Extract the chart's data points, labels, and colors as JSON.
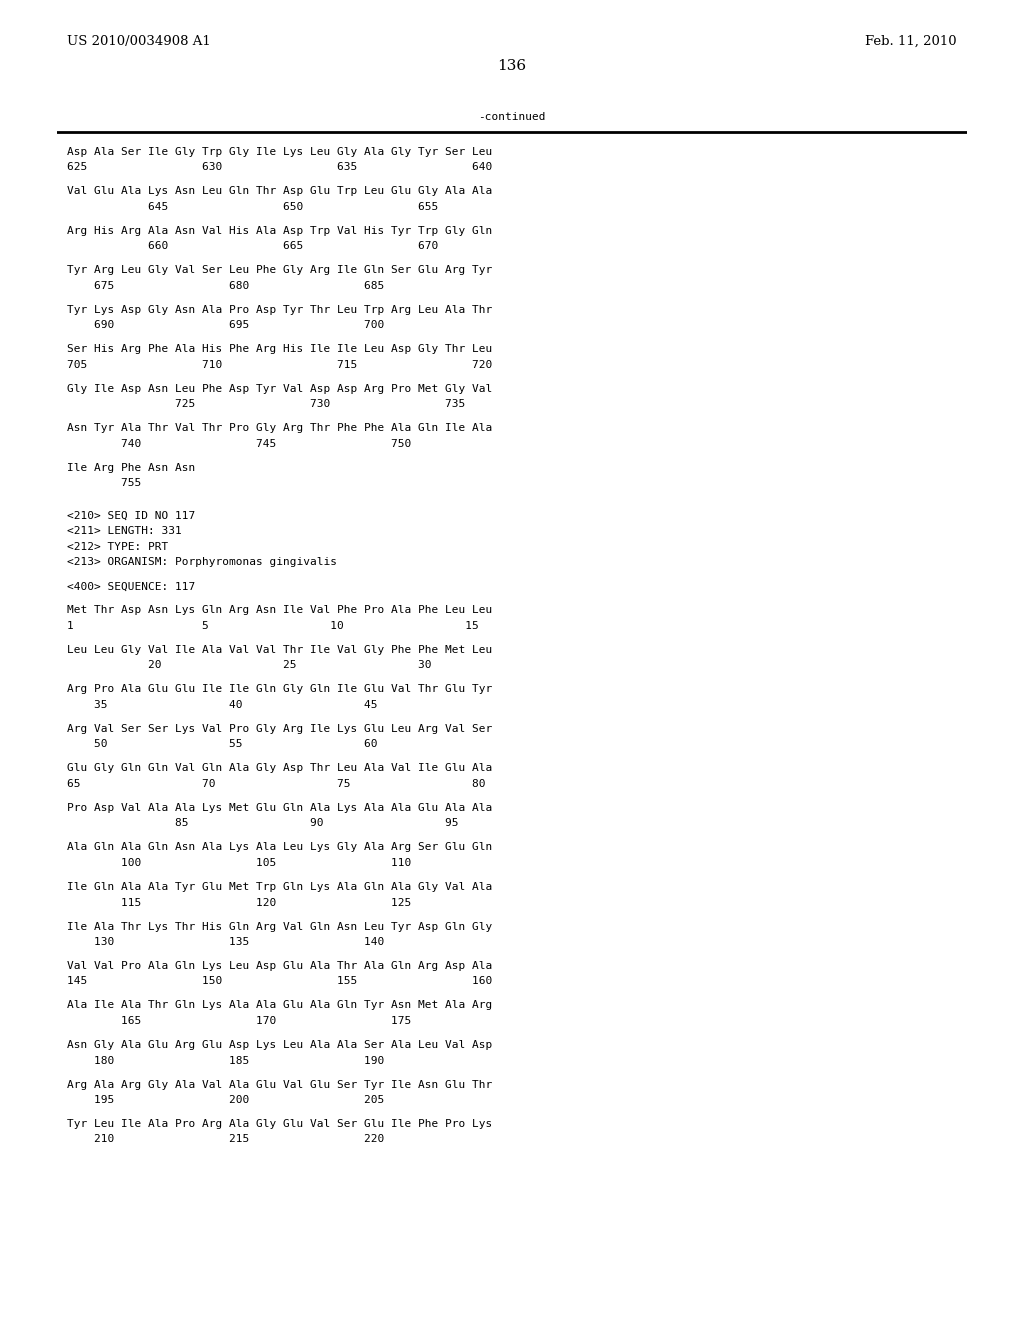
{
  "header_left": "US 2010/0034908 A1",
  "header_right": "Feb. 11, 2010",
  "page_number": "136",
  "continued_label": "-continued",
  "background_color": "#ffffff",
  "text_color": "#000000",
  "font_size": 8.0,
  "mono_font": "DejaVu Sans Mono",
  "header_font_size": 9.5,
  "page_num_font_size": 11,
  "lines": [
    "Asp Ala Ser Ile Gly Trp Gly Ile Lys Leu Gly Ala Gly Tyr Ser Leu",
    "625                 630                 635                 640",
    "",
    "Val Glu Ala Lys Asn Leu Gln Thr Asp Glu Trp Leu Glu Gly Ala Ala",
    "            645                 650                 655",
    "",
    "Arg His Arg Ala Asn Val His Ala Asp Trp Val His Tyr Trp Gly Gln",
    "            660                 665                 670",
    "",
    "Tyr Arg Leu Gly Val Ser Leu Phe Gly Arg Ile Gln Ser Glu Arg Tyr",
    "    675                 680                 685",
    "",
    "Tyr Lys Asp Gly Asn Ala Pro Asp Tyr Thr Leu Trp Arg Leu Ala Thr",
    "    690                 695                 700",
    "",
    "Ser His Arg Phe Ala His Phe Arg His Ile Ile Leu Asp Gly Thr Leu",
    "705                 710                 715                 720",
    "",
    "Gly Ile Asp Asn Leu Phe Asp Tyr Val Asp Asp Arg Pro Met Gly Val",
    "                725                 730                 735",
    "",
    "Asn Tyr Ala Thr Val Thr Pro Gly Arg Thr Phe Phe Ala Gln Ile Ala",
    "        740                 745                 750",
    "",
    "Ile Arg Phe Asn Asn",
    "        755",
    "",
    "",
    "<210> SEQ ID NO 117",
    "<211> LENGTH: 331",
    "<212> TYPE: PRT",
    "<213> ORGANISM: Porphyromonas gingivalis",
    "",
    "<400> SEQUENCE: 117",
    "",
    "Met Thr Asp Asn Lys Gln Arg Asn Ile Val Phe Pro Ala Phe Leu Leu",
    "1                   5                  10                  15",
    "",
    "Leu Leu Gly Val Ile Ala Val Val Thr Ile Val Gly Phe Phe Met Leu",
    "            20                  25                  30",
    "",
    "Arg Pro Ala Glu Glu Ile Ile Gln Gly Gln Ile Glu Val Thr Glu Tyr",
    "    35                  40                  45",
    "",
    "Arg Val Ser Ser Lys Val Pro Gly Arg Ile Lys Glu Leu Arg Val Ser",
    "    50                  55                  60",
    "",
    "Glu Gly Gln Gln Val Gln Ala Gly Asp Thr Leu Ala Val Ile Glu Ala",
    "65                  70                  75                  80",
    "",
    "Pro Asp Val Ala Ala Lys Met Glu Gln Ala Lys Ala Ala Glu Ala Ala",
    "                85                  90                  95",
    "",
    "Ala Gln Ala Gln Asn Ala Lys Ala Leu Lys Gly Ala Arg Ser Glu Gln",
    "        100                 105                 110",
    "",
    "Ile Gln Ala Ala Tyr Glu Met Trp Gln Lys Ala Gln Ala Gly Val Ala",
    "        115                 120                 125",
    "",
    "Ile Ala Thr Lys Thr His Gln Arg Val Gln Asn Leu Tyr Asp Gln Gly",
    "    130                 135                 140",
    "",
    "Val Val Pro Ala Gln Lys Leu Asp Glu Ala Thr Ala Gln Arg Asp Ala",
    "145                 150                 155                 160",
    "",
    "Ala Ile Ala Thr Gln Lys Ala Ala Glu Ala Gln Tyr Asn Met Ala Arg",
    "        165                 170                 175",
    "",
    "Asn Gly Ala Glu Arg Glu Asp Lys Leu Ala Ala Ser Ala Leu Val Asp",
    "    180                 185                 190",
    "",
    "Arg Ala Arg Gly Ala Val Ala Glu Val Glu Ser Tyr Ile Asn Glu Thr",
    "    195                 200                 205",
    "",
    "Tyr Leu Ile Ala Pro Arg Ala Gly Glu Val Ser Glu Ile Phe Pro Lys",
    "    210                 215                 220"
  ]
}
